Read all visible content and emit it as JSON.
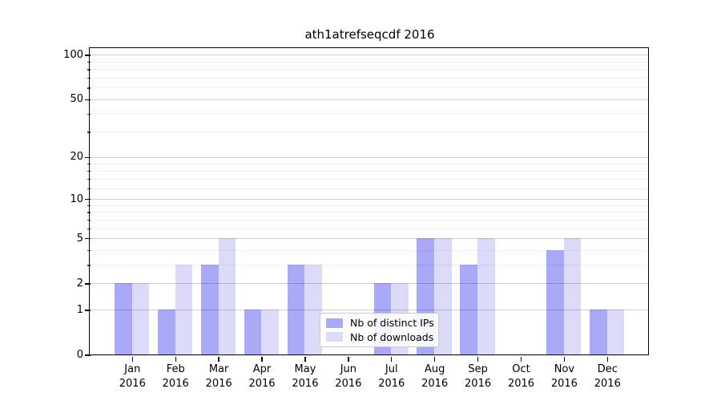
{
  "figure": {
    "title": "ath1atrefseqcdf 2016"
  },
  "colors": {
    "bar_distinct_ips": "#a9a9f7",
    "bar_downloads": "#dbdbf9",
    "axis": "#000000",
    "grid_major": "rgba(0,0,0,0.18)",
    "grid_minor": "rgba(0,0,0,0.06)"
  },
  "chart_data": {
    "type": "bar",
    "title": "ath1atrefseqcdf 2016",
    "categories": [
      "Jan 2016",
      "Feb 2016",
      "Mar 2016",
      "Apr 2016",
      "May 2016",
      "Jun 2016",
      "Jul 2016",
      "Aug 2016",
      "Sep 2016",
      "Oct 2016",
      "Nov 2016",
      "Dec 2016"
    ],
    "series": [
      {
        "name": "Nb of distinct IPs",
        "color": "#a9a9f7",
        "values": [
          2,
          1,
          3,
          1,
          3,
          0,
          2,
          5,
          3,
          0,
          4,
          1
        ]
      },
      {
        "name": "Nb of downloads",
        "color": "#dbdbf9",
        "values": [
          2,
          3,
          5,
          1,
          3,
          0,
          2,
          5,
          5,
          0,
          5,
          1
        ]
      }
    ],
    "xlabel": "",
    "ylabel": "",
    "yscale": "log1p",
    "ylim": [
      0,
      110
    ],
    "y_major_ticks": [
      0,
      1,
      2,
      5,
      10,
      20,
      50,
      100
    ],
    "y_minor_ticks": [
      3,
      4,
      6,
      7,
      8,
      9,
      12,
      14,
      16,
      18,
      30,
      40,
      60,
      70,
      80,
      90
    ],
    "grid": true,
    "legend": {
      "position": "lower center",
      "entries": [
        "Nb of distinct IPs",
        "Nb of downloads"
      ]
    }
  }
}
